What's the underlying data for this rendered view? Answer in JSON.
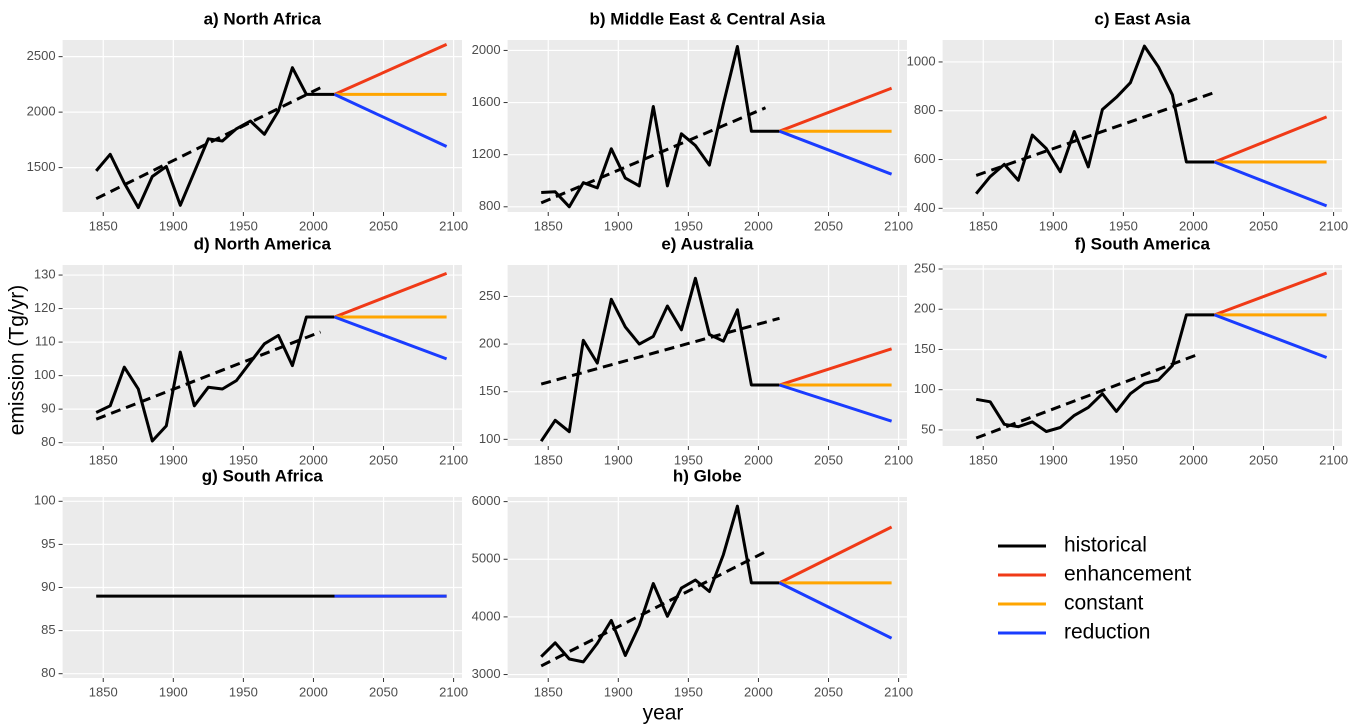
{
  "axis_labels": {
    "y": "emission (Tg/yr)",
    "x": "year"
  },
  "chart_data": [
    {
      "type": "line",
      "title": "a) North Africa",
      "xlim": [
        1821,
        2106
      ],
      "xticks": [
        1850,
        1900,
        1950,
        2000,
        2050,
        2100
      ],
      "ylim": [
        1100,
        2650
      ],
      "yticks": [
        1500,
        2000,
        2500
      ],
      "grid": true,
      "series": [
        {
          "name": "historical",
          "color": "#000000",
          "x": [
            1845,
            1855,
            1865,
            1875,
            1885,
            1895,
            1905,
            1915,
            1925,
            1935,
            1945,
            1955,
            1965,
            1975,
            1985,
            1995,
            2005,
            2015
          ],
          "values": [
            1470,
            1620,
            1360,
            1140,
            1420,
            1510,
            1160,
            1460,
            1760,
            1740,
            1850,
            1920,
            1800,
            2010,
            2400,
            2160,
            2160,
            2160
          ]
        },
        {
          "name": "enhancement",
          "color": "#f03a17",
          "x": [
            2015,
            2095
          ],
          "values": [
            2160,
            2610
          ]
        },
        {
          "name": "constant",
          "color": "#ffa500",
          "x": [
            2015,
            2095
          ],
          "values": [
            2160,
            2160
          ]
        },
        {
          "name": "reduction",
          "color": "#1a3cff",
          "x": [
            2015,
            2095
          ],
          "values": [
            2160,
            1690
          ]
        },
        {
          "color": "#000000",
          "dash": true,
          "x": [
            1845,
            2005
          ],
          "values": [
            1220,
            2220
          ]
        }
      ]
    },
    {
      "type": "line",
      "title": "b) Middle East & Central Asia",
      "xlim": [
        1821,
        2106
      ],
      "xticks": [
        1850,
        1900,
        1950,
        2000,
        2050,
        2100
      ],
      "ylim": [
        760,
        2080
      ],
      "yticks": [
        800,
        1200,
        1600,
        2000
      ],
      "grid": true,
      "series": [
        {
          "color": "#000000",
          "x": [
            1845,
            1855,
            1865,
            1875,
            1885,
            1895,
            1905,
            1915,
            1925,
            1935,
            1945,
            1955,
            1965,
            1975,
            1985,
            1995,
            2005,
            2015
          ],
          "values": [
            910,
            915,
            800,
            985,
            945,
            1245,
            1020,
            960,
            1570,
            960,
            1360,
            1270,
            1120,
            1590,
            2030,
            1380,
            1380,
            1380
          ]
        },
        {
          "color": "#f03a17",
          "x": [
            2015,
            2095
          ],
          "values": [
            1380,
            1710
          ]
        },
        {
          "color": "#ffa500",
          "x": [
            2015,
            2095
          ],
          "values": [
            1380,
            1380
          ]
        },
        {
          "color": "#1a3cff",
          "x": [
            2015,
            2095
          ],
          "values": [
            1380,
            1050
          ]
        },
        {
          "color": "#000000",
          "dash": true,
          "x": [
            1845,
            2005
          ],
          "values": [
            830,
            1560
          ]
        }
      ]
    },
    {
      "type": "line",
      "title": "c) East Asia",
      "xlim": [
        1821,
        2106
      ],
      "xticks": [
        1850,
        1900,
        1950,
        2000,
        2050,
        2100
      ],
      "ylim": [
        385,
        1090
      ],
      "yticks": [
        400,
        600,
        800,
        1000
      ],
      "grid": true,
      "series": [
        {
          "color": "#000000",
          "x": [
            1845,
            1855,
            1865,
            1875,
            1885,
            1895,
            1905,
            1915,
            1925,
            1935,
            1945,
            1955,
            1965,
            1975,
            1985,
            1995,
            2005,
            2015
          ],
          "values": [
            460,
            530,
            580,
            515,
            700,
            645,
            550,
            715,
            570,
            805,
            855,
            915,
            1065,
            980,
            865,
            590,
            590,
            590
          ]
        },
        {
          "color": "#f03a17",
          "x": [
            2015,
            2095
          ],
          "values": [
            590,
            775
          ]
        },
        {
          "color": "#ffa500",
          "x": [
            2015,
            2095
          ],
          "values": [
            590,
            590
          ]
        },
        {
          "color": "#1a3cff",
          "x": [
            2015,
            2095
          ],
          "values": [
            590,
            410
          ]
        },
        {
          "color": "#000000",
          "dash": true,
          "x": [
            1845,
            2015
          ],
          "values": [
            535,
            875
          ]
        }
      ]
    },
    {
      "type": "line",
      "title": "d) North America",
      "xlim": [
        1821,
        2106
      ],
      "xticks": [
        1850,
        1900,
        1950,
        2000,
        2050,
        2100
      ],
      "ylim": [
        79,
        133
      ],
      "yticks": [
        80,
        90,
        100,
        110,
        120,
        130
      ],
      "grid": true,
      "series": [
        {
          "color": "#000000",
          "x": [
            1845,
            1855,
            1865,
            1875,
            1885,
            1895,
            1905,
            1915,
            1925,
            1935,
            1945,
            1955,
            1965,
            1975,
            1985,
            1995,
            2005,
            2015
          ],
          "values": [
            89,
            91,
            102.5,
            96,
            80.5,
            85,
            107,
            91,
            96.5,
            96,
            98.5,
            104,
            109.5,
            112,
            103,
            117.5,
            117.5,
            117.5
          ]
        },
        {
          "color": "#f03a17",
          "x": [
            2015,
            2095
          ],
          "values": [
            117.5,
            130.5
          ]
        },
        {
          "color": "#ffa500",
          "x": [
            2015,
            2095
          ],
          "values": [
            117.5,
            117.5
          ]
        },
        {
          "color": "#1a3cff",
          "x": [
            2015,
            2095
          ],
          "values": [
            117.5,
            105
          ]
        },
        {
          "color": "#000000",
          "dash": true,
          "x": [
            1845,
            2005
          ],
          "values": [
            87,
            113
          ]
        }
      ]
    },
    {
      "type": "line",
      "title": "e) Australia",
      "xlim": [
        1821,
        2106
      ],
      "xticks": [
        1850,
        1900,
        1950,
        2000,
        2050,
        2100
      ],
      "ylim": [
        93,
        283
      ],
      "yticks": [
        100,
        150,
        200,
        250
      ],
      "grid": true,
      "series": [
        {
          "color": "#000000",
          "x": [
            1845,
            1855,
            1865,
            1875,
            1885,
            1895,
            1905,
            1915,
            1925,
            1935,
            1945,
            1955,
            1965,
            1975,
            1985,
            1995,
            2005,
            2015
          ],
          "values": [
            98,
            120,
            108,
            204,
            180,
            247,
            218,
            200,
            208,
            240,
            215,
            269,
            210,
            203,
            236,
            157,
            157,
            157
          ]
        },
        {
          "color": "#f03a17",
          "x": [
            2015,
            2095
          ],
          "values": [
            157,
            195
          ]
        },
        {
          "color": "#ffa500",
          "x": [
            2015,
            2095
          ],
          "values": [
            157,
            157
          ]
        },
        {
          "color": "#1a3cff",
          "x": [
            2015,
            2095
          ],
          "values": [
            157,
            119
          ]
        },
        {
          "color": "#000000",
          "dash": true,
          "x": [
            1845,
            2015
          ],
          "values": [
            158,
            227
          ]
        }
      ]
    },
    {
      "type": "line",
      "title": "f) South America",
      "xlim": [
        1821,
        2106
      ],
      "xticks": [
        1850,
        1900,
        1950,
        2000,
        2050,
        2100
      ],
      "ylim": [
        30,
        255
      ],
      "yticks": [
        50,
        100,
        150,
        200,
        250
      ],
      "grid": true,
      "series": [
        {
          "color": "#000000",
          "x": [
            1845,
            1855,
            1865,
            1875,
            1885,
            1895,
            1905,
            1915,
            1925,
            1935,
            1945,
            1955,
            1965,
            1975,
            1985,
            1995,
            2005,
            2015
          ],
          "values": [
            88,
            85,
            57,
            54,
            60,
            48,
            53,
            68,
            78,
            95,
            73,
            95,
            108,
            112,
            130,
            193,
            193,
            193
          ]
        },
        {
          "color": "#f03a17",
          "x": [
            2015,
            2095
          ],
          "values": [
            193,
            245
          ]
        },
        {
          "color": "#ffa500",
          "x": [
            2015,
            2095
          ],
          "values": [
            193,
            193
          ]
        },
        {
          "color": "#1a3cff",
          "x": [
            2015,
            2095
          ],
          "values": [
            193,
            140
          ]
        },
        {
          "color": "#000000",
          "dash": true,
          "x": [
            1845,
            2005
          ],
          "values": [
            40,
            145
          ]
        }
      ]
    },
    {
      "type": "line",
      "title": "g) South Africa",
      "xlim": [
        1821,
        2106
      ],
      "xticks": [
        1850,
        1900,
        1950,
        2000,
        2050,
        2100
      ],
      "ylim": [
        79.5,
        100.5
      ],
      "yticks": [
        80,
        85,
        90,
        95,
        100
      ],
      "grid": true,
      "series": [
        {
          "color": "#000000",
          "x": [
            1845,
            1855,
            1865,
            1875,
            1885,
            1895,
            1905,
            1915,
            1925,
            1935,
            1945,
            1955,
            1965,
            1975,
            1985,
            1995,
            2005,
            2015
          ],
          "values": [
            89,
            89,
            89,
            89,
            89,
            89,
            89,
            89,
            89,
            89,
            89,
            89,
            89,
            89,
            89,
            89,
            89,
            89
          ]
        },
        {
          "color": "#f03a17",
          "x": [
            2015,
            2095
          ],
          "values": [
            89,
            89
          ]
        },
        {
          "color": "#ffa500",
          "x": [
            2015,
            2095
          ],
          "values": [
            89,
            89
          ]
        },
        {
          "color": "#1a3cff",
          "x": [
            2015,
            2095
          ],
          "values": [
            89,
            89
          ]
        }
      ]
    },
    {
      "type": "line",
      "title": "h) Globe",
      "xlim": [
        1821,
        2106
      ],
      "xticks": [
        1850,
        1900,
        1950,
        2000,
        2050,
        2100
      ],
      "ylim": [
        2940,
        6080
      ],
      "yticks": [
        3000,
        4000,
        5000,
        6000
      ],
      "grid": true,
      "series": [
        {
          "color": "#000000",
          "x": [
            1845,
            1855,
            1865,
            1875,
            1885,
            1895,
            1905,
            1915,
            1925,
            1935,
            1945,
            1955,
            1965,
            1975,
            1985,
            1995,
            2005,
            2015
          ],
          "values": [
            3310,
            3550,
            3270,
            3220,
            3540,
            3940,
            3330,
            3850,
            4580,
            4010,
            4500,
            4640,
            4440,
            5080,
            5920,
            4590,
            4590,
            4590
          ]
        },
        {
          "color": "#f03a17",
          "x": [
            2015,
            2095
          ],
          "values": [
            4590,
            5560
          ]
        },
        {
          "color": "#ffa500",
          "x": [
            2015,
            2095
          ],
          "values": [
            4590,
            4590
          ]
        },
        {
          "color": "#1a3cff",
          "x": [
            2015,
            2095
          ],
          "values": [
            4590,
            3630
          ]
        },
        {
          "color": "#000000",
          "dash": true,
          "x": [
            1845,
            2005
          ],
          "values": [
            3150,
            5130
          ]
        }
      ]
    }
  ]
}
